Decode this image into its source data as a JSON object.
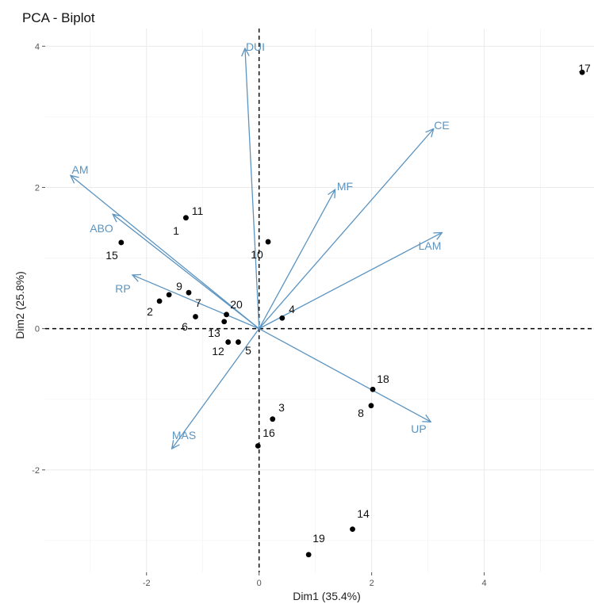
{
  "chart_data": {
    "type": "scatter",
    "title": "PCA - Biplot",
    "xlabel": "Dim1 (35.4%)",
    "ylabel": "Dim2 (25.8%)",
    "xlim": [
      -3.8,
      5.95
    ],
    "ylim": [
      -3.45,
      4.25
    ],
    "x_ticks": [
      -2,
      0,
      2,
      4
    ],
    "y_ticks": [
      -2,
      0,
      2,
      4
    ],
    "grid": true,
    "point_color": "#000000",
    "arrow_color": "#5b94c1",
    "points": [
      {
        "label": "1",
        "x": -1.3,
        "y": 1.57
      },
      {
        "label": "2",
        "x": -1.77,
        "y": 0.39
      },
      {
        "label": "3",
        "x": 0.24,
        "y": -1.28
      },
      {
        "label": "4",
        "x": 0.41,
        "y": 0.15
      },
      {
        "label": "5",
        "x": -0.37,
        "y": -0.19
      },
      {
        "label": "6",
        "x": -1.13,
        "y": 0.17
      },
      {
        "label": "7",
        "x": -1.25,
        "y": 0.51
      },
      {
        "label": "8",
        "x": 1.99,
        "y": -1.09
      },
      {
        "label": "9",
        "x": -1.6,
        "y": 0.48
      },
      {
        "label": "10",
        "x": 0.16,
        "y": 1.23
      },
      {
        "label": "11",
        "x": -1.3,
        "y": 1.57
      },
      {
        "label": "12",
        "x": -0.55,
        "y": -0.19
      },
      {
        "label": "13",
        "x": -0.62,
        "y": 0.1
      },
      {
        "label": "14",
        "x": 1.66,
        "y": -2.84
      },
      {
        "label": "15",
        "x": -2.45,
        "y": 1.22
      },
      {
        "label": "16",
        "x": -0.02,
        "y": -1.66
      },
      {
        "label": "17",
        "x": 5.74,
        "y": 3.63
      },
      {
        "label": "18",
        "x": 2.02,
        "y": -0.86
      },
      {
        "label": "19",
        "x": 0.88,
        "y": -3.2
      },
      {
        "label": "20",
        "x": -0.58,
        "y": 0.2
      }
    ],
    "variables": [
      {
        "name": "DUI",
        "x": -0.25,
        "y": 3.97
      },
      {
        "name": "CE",
        "x": 3.1,
        "y": 2.83
      },
      {
        "name": "MF",
        "x": 1.35,
        "y": 1.97
      },
      {
        "name": "LAM",
        "x": 3.25,
        "y": 1.36
      },
      {
        "name": "AM",
        "x": -3.35,
        "y": 2.17
      },
      {
        "name": "ABO",
        "x": -2.6,
        "y": 1.62
      },
      {
        "name": "RP",
        "x": -2.25,
        "y": 0.76
      },
      {
        "name": "UP",
        "x": 3.05,
        "y": -1.32
      },
      {
        "name": "MAS",
        "x": -1.55,
        "y": -1.7
      }
    ]
  }
}
